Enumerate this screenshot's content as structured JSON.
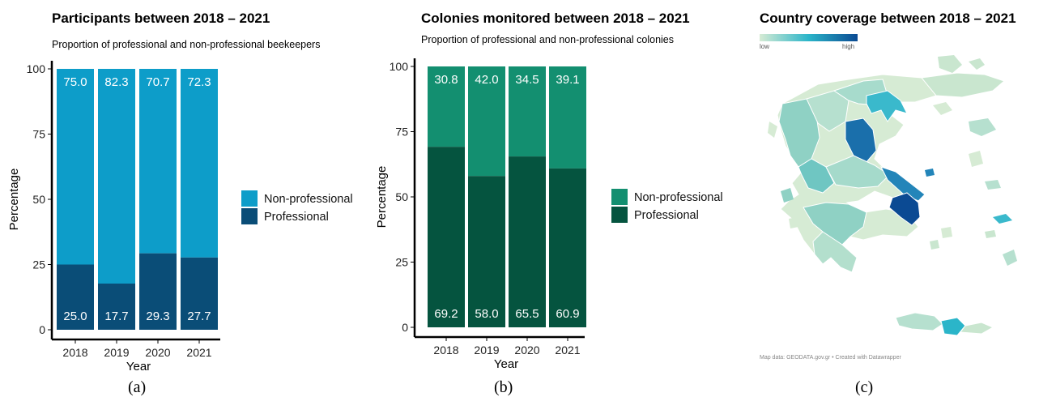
{
  "colors": {
    "panel_a_nonprof": "#0d9dc9",
    "panel_a_prof": "#0a4d77",
    "panel_b_nonprof": "#138f70",
    "panel_b_prof": "#05543f",
    "map_low": "#d6ebd4",
    "map_mid": "#2bb5c9",
    "map_high": "#0b4a93"
  },
  "chart_data": [
    {
      "type": "bar",
      "stacked": true,
      "title": "Participants between 2018 – 2021",
      "subtitle": "Proportion of professional and non-professional beekeepers",
      "xlabel": "Year",
      "ylabel": "Percentage",
      "ylim": [
        0,
        100
      ],
      "yticks": [
        "0",
        "25",
        "50",
        "75",
        "100"
      ],
      "categories": [
        "2018",
        "2019",
        "2020",
        "2021"
      ],
      "series": [
        {
          "name": "Professional",
          "values": [
            25.0,
            17.7,
            29.3,
            27.7
          ],
          "labels": [
            "25.0",
            "17.7",
            "29.3",
            "27.7"
          ]
        },
        {
          "name": "Non-professional",
          "values": [
            75.0,
            82.3,
            70.7,
            72.3
          ],
          "labels": [
            "75.0",
            "82.3",
            "70.7",
            "72.3"
          ]
        }
      ],
      "legend": [
        "Non-professional",
        "Professional"
      ],
      "legend_position": "right",
      "panel_label": "(a)"
    },
    {
      "type": "bar",
      "stacked": true,
      "title": "Colonies monitored between 2018 – 2021",
      "subtitle": "Proportion of professional and non-professional colonies",
      "xlabel": "Year",
      "ylabel": "Percentage",
      "ylim": [
        0,
        100
      ],
      "yticks": [
        "0",
        "25",
        "50",
        "75",
        "100"
      ],
      "categories": [
        "2018",
        "2019",
        "2020",
        "2021"
      ],
      "series": [
        {
          "name": "Professional",
          "values": [
            69.2,
            58.0,
            65.5,
            60.9
          ],
          "labels": [
            "69.2",
            "58.0",
            "65.5",
            "60.9"
          ]
        },
        {
          "name": "Non-professional",
          "values": [
            30.8,
            42.0,
            34.5,
            39.1
          ],
          "labels": [
            "30.8",
            "42.0",
            "34.5",
            "39.1"
          ]
        }
      ],
      "legend": [
        "Non-professional",
        "Professional"
      ],
      "legend_position": "right",
      "panel_label": "(b)"
    }
  ],
  "map": {
    "title": "Country coverage between 2018 – 2021",
    "legend_low": "low",
    "legend_high": "high",
    "footer": "Map data: GEODATA.gov.gr • Created with Datawrapper",
    "panel_label": "(c)"
  }
}
